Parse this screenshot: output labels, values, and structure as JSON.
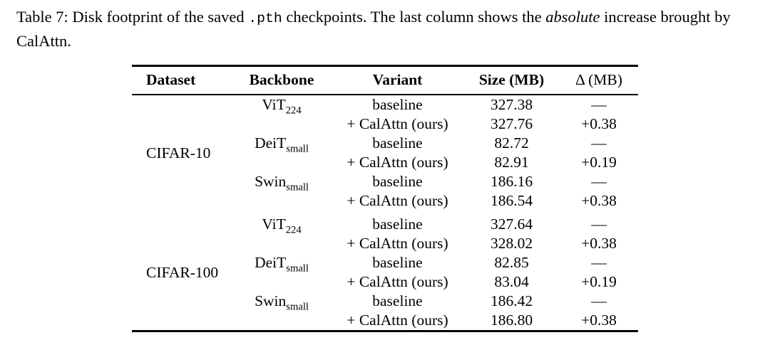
{
  "caption": {
    "label": "Table 7:",
    "part1": "Disk footprint of the saved",
    "code": ".pth",
    "part2": "checkpoints. The last column shows the",
    "emph": "absolute",
    "part3": "increase brought by CalAttn."
  },
  "table": {
    "headers": {
      "dataset": "Dataset",
      "backbone": "Backbone",
      "variant": "Variant",
      "size": "Size (MB)",
      "delta": "Δ (MB)"
    },
    "groups": [
      {
        "dataset": "CIFAR-10",
        "blocks": [
          {
            "backbone": "ViT",
            "subscript": "224",
            "rows": [
              {
                "variant": "baseline",
                "size": "327.38",
                "delta": "—"
              },
              {
                "variant": "+ CalAttn (ours)",
                "size": "327.76",
                "delta": "+0.38"
              }
            ]
          },
          {
            "backbone": "DeiT",
            "subscript": "small",
            "rows": [
              {
                "variant": "baseline",
                "size": "82.72",
                "delta": "—"
              },
              {
                "variant": "+ CalAttn (ours)",
                "size": "82.91",
                "delta": "+0.19"
              }
            ]
          },
          {
            "backbone": "Swin",
            "subscript": "small",
            "rows": [
              {
                "variant": "baseline",
                "size": "186.16",
                "delta": "—"
              },
              {
                "variant": "+ CalAttn (ours)",
                "size": "186.54",
                "delta": "+0.38"
              }
            ]
          }
        ]
      },
      {
        "dataset": "CIFAR-100",
        "blocks": [
          {
            "backbone": "ViT",
            "subscript": "224",
            "rows": [
              {
                "variant": "baseline",
                "size": "327.64",
                "delta": "—"
              },
              {
                "variant": "+ CalAttn (ours)",
                "size": "328.02",
                "delta": "+0.38"
              }
            ]
          },
          {
            "backbone": "DeiT",
            "subscript": "small",
            "rows": [
              {
                "variant": "baseline",
                "size": "82.85",
                "delta": "—"
              },
              {
                "variant": "+ CalAttn (ours)",
                "size": "83.04",
                "delta": "+0.19"
              }
            ]
          },
          {
            "backbone": "Swin",
            "subscript": "small",
            "rows": [
              {
                "variant": "baseline",
                "size": "186.42",
                "delta": "—"
              },
              {
                "variant": "+ CalAttn (ours)",
                "size": "186.80",
                "delta": "+0.38"
              }
            ]
          }
        ]
      }
    ]
  }
}
